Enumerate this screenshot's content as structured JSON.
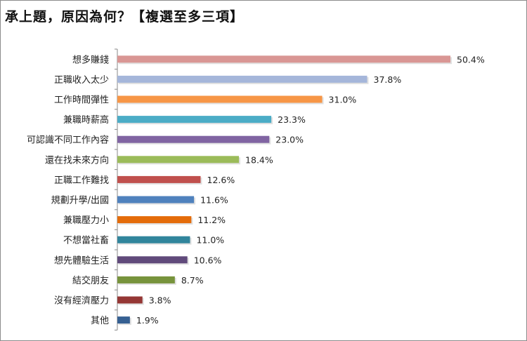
{
  "chart_data": {
    "type": "bar",
    "orientation": "horizontal",
    "title": "承上題，原因為何？【複選至多三項】",
    "categories": [
      "想多賺錢",
      "正職收入太少",
      "工作時間彈性",
      "兼職時薪高",
      "可認識不同工作內容",
      "還在找未來方向",
      "正職工作難找",
      "規劃升學/出國",
      "兼職壓力小",
      "不想當社畜",
      "想先體驗生活",
      "結交朋友",
      "沒有經濟壓力",
      "其他"
    ],
    "values": [
      50.4,
      37.8,
      31.0,
      23.3,
      23.0,
      18.4,
      12.6,
      11.6,
      11.2,
      11.0,
      10.6,
      8.7,
      3.8,
      1.9
    ],
    "value_labels": [
      "50.4%",
      "37.8%",
      "31.0%",
      "23.3%",
      "23.0%",
      "18.4%",
      "12.6%",
      "11.6%",
      "11.2%",
      "11.0%",
      "10.6%",
      "8.7%",
      "3.8%",
      "1.9%"
    ],
    "colors": [
      "#d99694",
      "#a5b6da",
      "#f79646",
      "#4bacc6",
      "#8064a2",
      "#9bbb59",
      "#c0504d",
      "#4f81bd",
      "#e46c0a",
      "#31859c",
      "#604a7b",
      "#77933c",
      "#953735",
      "#366092"
    ],
    "xlim": [
      0,
      50.4
    ],
    "grid": false,
    "legend": "none"
  }
}
